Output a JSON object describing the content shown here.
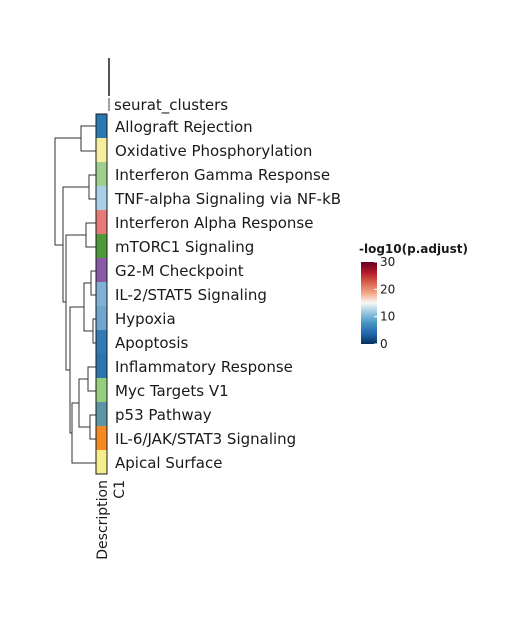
{
  "chart_data": {
    "type": "heatmap",
    "top_annotation_label": "seurat_clusters",
    "rows": [
      {
        "label": "Allograft Rejection",
        "color": "#2878b4"
      },
      {
        "label": "Oxidative Phosphorylation",
        "color": "#f5ef9c"
      },
      {
        "label": "Interferon Gamma Response",
        "color": "#9fcf8e"
      },
      {
        "label": "TNF-alpha Signaling via NF-kB",
        "color": "#a8d0e8"
      },
      {
        "label": "Interferon Alpha Response",
        "color": "#e87a76"
      },
      {
        "label": "mTORC1 Signaling",
        "color": "#4d9a3b"
      },
      {
        "label": "G2-M Checkpoint",
        "color": "#8a5aa6"
      },
      {
        "label": "IL-2/STAT5 Signaling",
        "color": "#7fb1d6"
      },
      {
        "label": "Hypoxia",
        "color": "#6ea6d0"
      },
      {
        "label": "Apoptosis",
        "color": "#2f7ab7"
      },
      {
        "label": "Inflammatory Response",
        "color": "#2a75b0"
      },
      {
        "label": "Myc Targets V1",
        "color": "#93cf7d"
      },
      {
        "label": "p53 Pathway",
        "color": "#5a96a4"
      },
      {
        "label": "IL-6/JAK/STAT3 Signaling",
        "color": "#f58a22"
      },
      {
        "label": "Apical Surface",
        "color": "#f5ec8c"
      }
    ],
    "column_labels": [
      "Description",
      "C1"
    ],
    "legend": {
      "title": "-log10(p.adjust)",
      "ticks": [
        0,
        10,
        20,
        30
      ],
      "range": [
        0,
        30
      ],
      "gradient": [
        "#053061",
        "#2166ac",
        "#4393c3",
        "#92c5de",
        "#f7f7f7",
        "#f4a582",
        "#d6604d",
        "#b2182b",
        "#67001f"
      ]
    }
  }
}
